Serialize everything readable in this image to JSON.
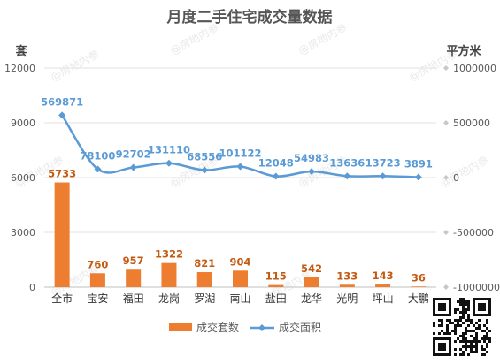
{
  "chart_data": {
    "type": "bar",
    "title": "月度二手住宅成交量数据",
    "categories": [
      "全市",
      "宝安",
      "福田",
      "龙岗",
      "罗湖",
      "南山",
      "盐田",
      "龙华",
      "光明",
      "坪山",
      "大鹏"
    ],
    "series": [
      {
        "name": "成交套数",
        "type": "bar",
        "axis": "left",
        "color": "#ED7D31",
        "values": [
          5733,
          760,
          957,
          1322,
          821,
          904,
          115,
          542,
          133,
          143,
          36
        ]
      },
      {
        "name": "成交面积",
        "type": "line",
        "axis": "right",
        "color": "#5B9BD5",
        "values": [
          569871,
          78100,
          92702,
          131110,
          68556,
          101122,
          12048,
          54983,
          13636,
          13723,
          3891
        ]
      }
    ],
    "y_left": {
      "label": "套",
      "min": 0,
      "max": 12000,
      "ticks": [
        "0",
        "3000",
        "6000",
        "9000",
        "12000"
      ]
    },
    "y_right": {
      "label": "平方米",
      "min": -1000000,
      "max": 1000000,
      "ticks": [
        "-1000000",
        "-500000",
        "0",
        "500000",
        "1000000"
      ]
    },
    "grid": true,
    "legend": "bottom-center",
    "watermark": "@房地内参"
  }
}
